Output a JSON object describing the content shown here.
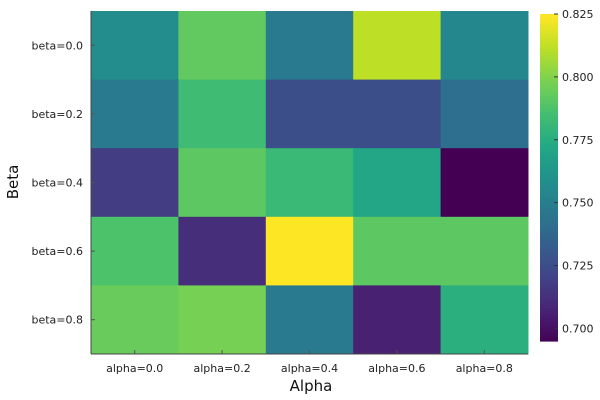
{
  "chart_data": {
    "type": "heatmap",
    "title": "",
    "xlabel": "Alpha",
    "ylabel": "Beta",
    "x_categories": [
      "alpha=0.0",
      "alpha=0.2",
      "alpha=0.4",
      "alpha=0.6",
      "alpha=0.8"
    ],
    "y_categories": [
      "beta=0.0",
      "beta=0.2",
      "beta=0.4",
      "beta=0.6",
      "beta=0.8"
    ],
    "values": [
      [
        0.758,
        0.793,
        0.748,
        0.812,
        0.755
      ],
      [
        0.748,
        0.784,
        0.726,
        0.726,
        0.742
      ],
      [
        0.718,
        0.792,
        0.782,
        0.772,
        0.695
      ],
      [
        0.788,
        0.712,
        0.825,
        0.792,
        0.792
      ],
      [
        0.795,
        0.798,
        0.748,
        0.707,
        0.777
      ]
    ],
    "colorscale": "viridis",
    "colorbar": {
      "range": [
        0.695,
        0.825
      ],
      "ticks": [
        0.7,
        0.725,
        0.75,
        0.775,
        0.8,
        0.825
      ],
      "tick_labels": [
        "0.700",
        "0.725",
        "0.750",
        "0.775",
        "0.800",
        "0.825"
      ]
    },
    "grid": false
  }
}
